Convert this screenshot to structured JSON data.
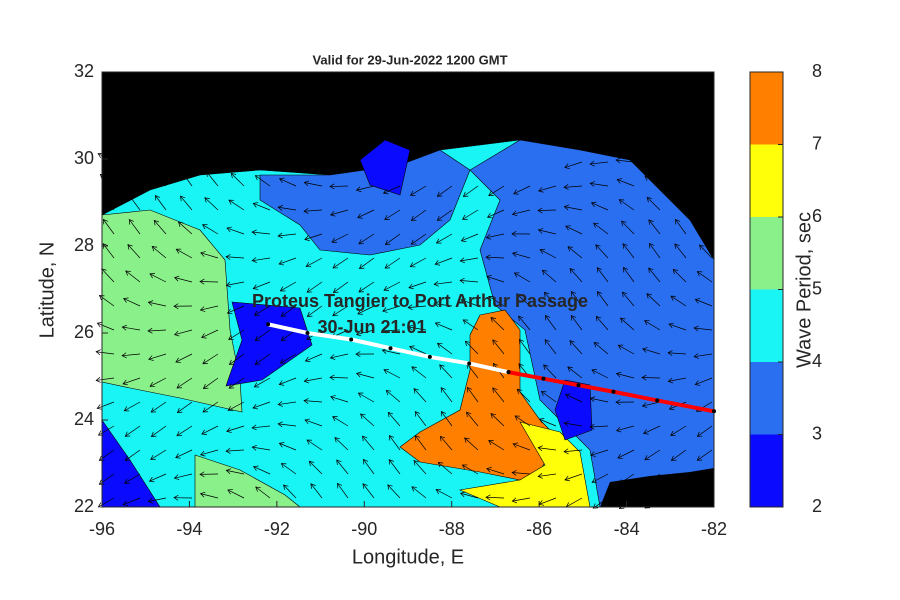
{
  "chart_data": {
    "type": "map",
    "title": "Valid for 29-Jun-2022 1200 GMT",
    "x_label": "Longitude, E",
    "y_label": "Latitude, N",
    "xlim": [
      -96,
      -82
    ],
    "ylim": [
      22,
      32
    ],
    "xticks": [
      -96,
      -94,
      -92,
      -90,
      -88,
      -86,
      -84,
      -82
    ],
    "yticks": [
      22,
      24,
      26,
      28,
      30,
      32
    ],
    "annotations": [
      "Proteus Tangier to Port Arthur Passage",
      "30-Jun 21:01"
    ],
    "track": {
      "lon": [
        -92.2,
        -91.3,
        -90.3,
        -89.4,
        -88.5,
        -87.6,
        -86.7
      ],
      "lat": [
        26.2,
        26.0,
        25.85,
        25.65,
        25.45,
        25.3,
        25.1
      ],
      "color": "#ffffff"
    },
    "track_ahead": {
      "lon": [
        -86.7,
        -85.9,
        -85.1,
        -84.3,
        -83.3,
        -82
      ],
      "lat": [
        25.1,
        24.95,
        24.8,
        24.65,
        24.45,
        24.2
      ],
      "color": "#ff0000"
    },
    "colorbar": {
      "label": "Wave Period, sec",
      "lim": [
        2,
        8
      ],
      "ticks": [
        2,
        3,
        4,
        5,
        6,
        7,
        8
      ],
      "colors": [
        "#0a0aff",
        "#2a6ff0",
        "#19f5f5",
        "#8af08a",
        "#ffff0a",
        "#ff8000"
      ]
    }
  }
}
